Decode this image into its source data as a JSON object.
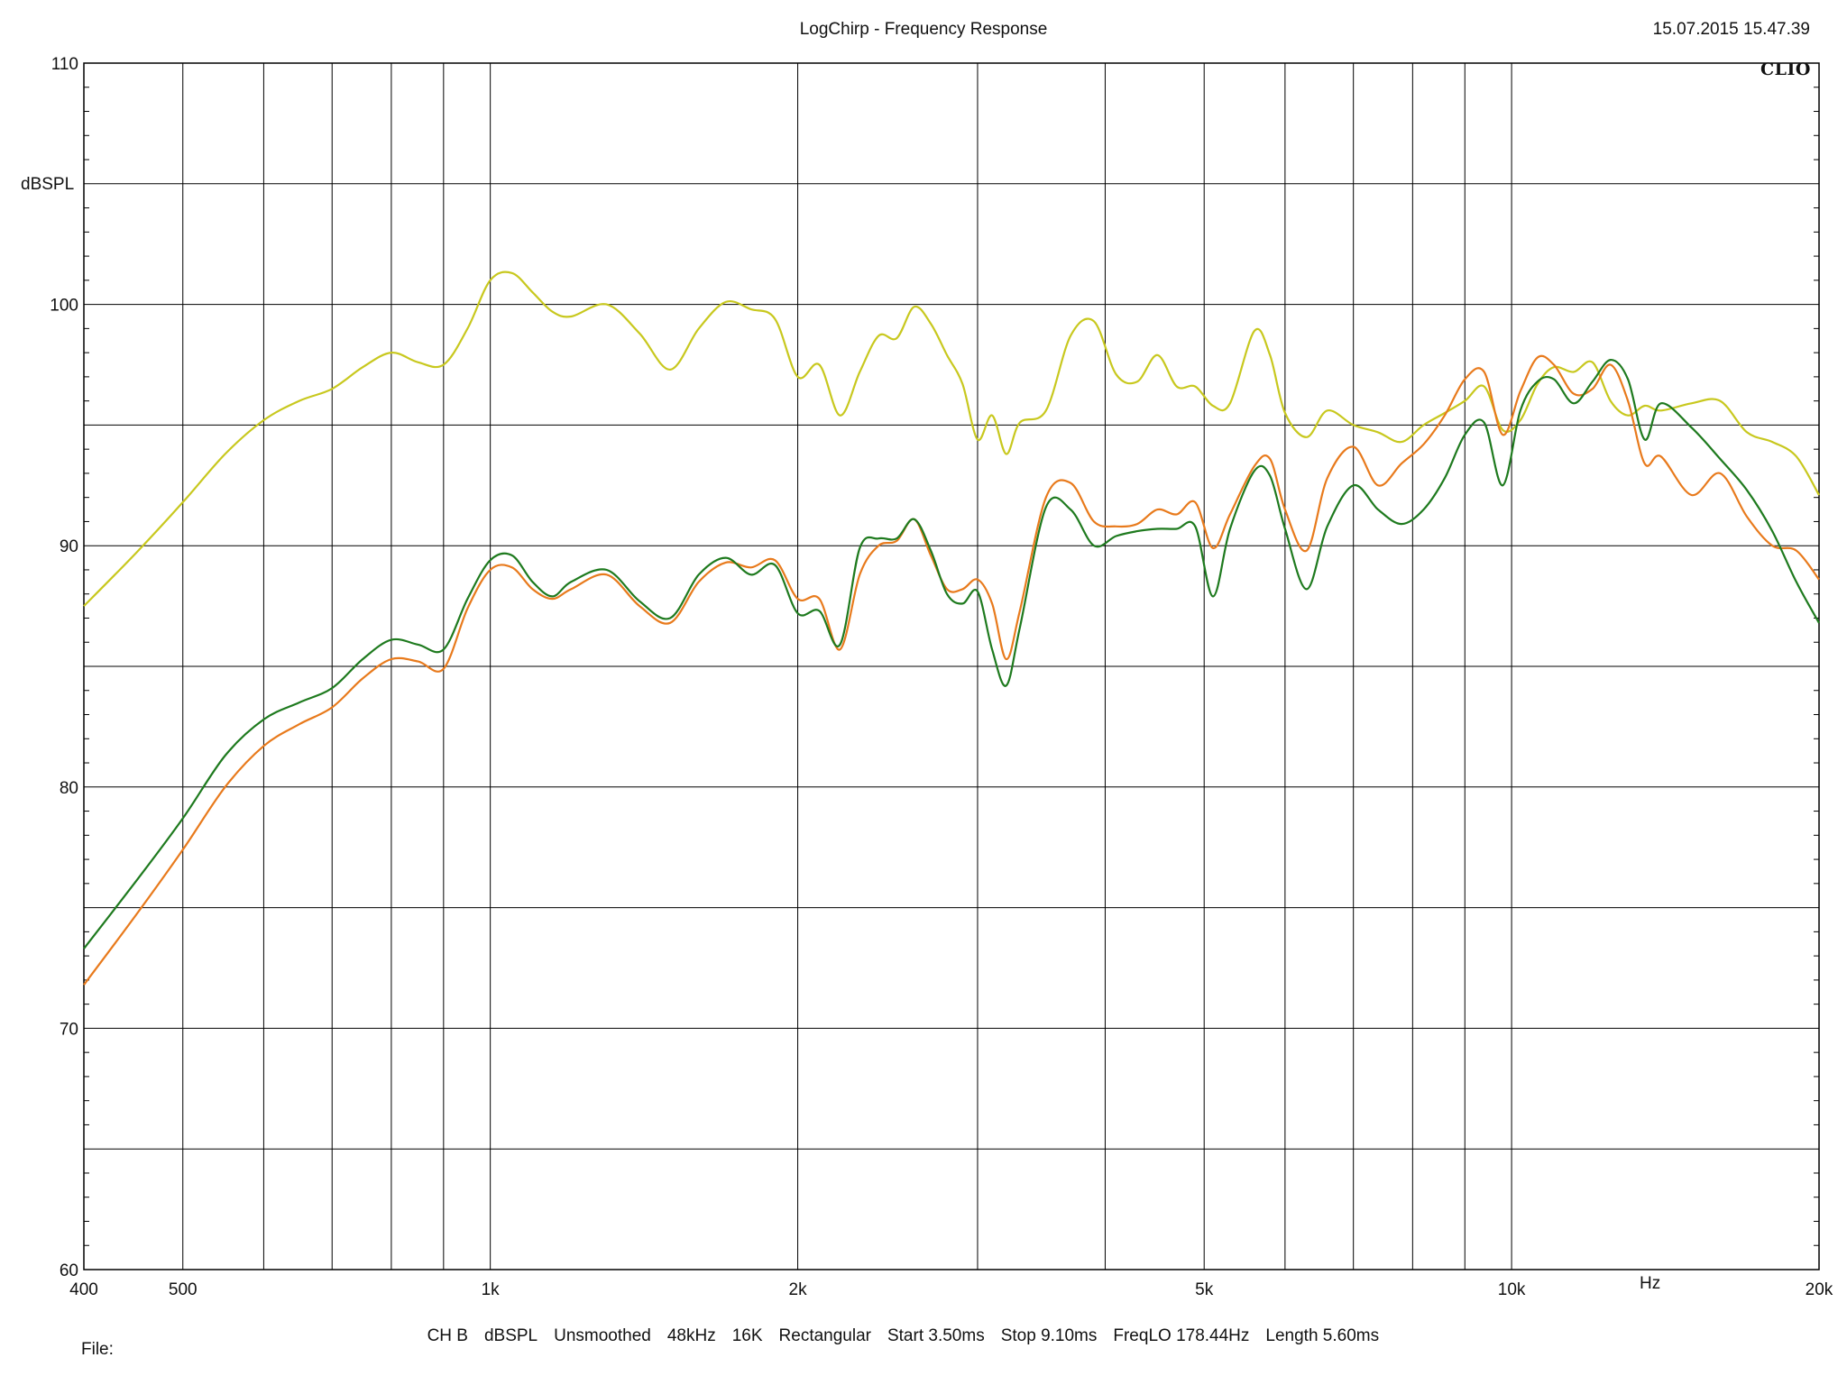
{
  "header": {
    "title": "LogChirp - Frequency Response",
    "timestamp": "15.07.2015 15.47.39",
    "logo": "CLIO"
  },
  "footer": {
    "items": [
      "CH B",
      "dBSPL",
      "Unsmoothed",
      "48kHz",
      "16K",
      "Rectangular",
      "Start 3.50ms",
      "Stop 9.10ms",
      "FreqLO 178.44Hz",
      "Length 5.60ms"
    ],
    "file_label": "File:"
  },
  "chart_data": {
    "type": "line",
    "title": "LogChirp - Frequency Response",
    "ylabel": "dBSPL",
    "xunit": "Hz",
    "xscale": "log",
    "xlim": [
      400,
      20000
    ],
    "ylim": [
      60,
      110
    ],
    "y_ticks": [
      60,
      70,
      80,
      90,
      100,
      110
    ],
    "x_ticks": [
      {
        "value": 400,
        "label": "400"
      },
      {
        "value": 500,
        "label": "500"
      },
      {
        "value": 1000,
        "label": "1k"
      },
      {
        "value": 2000,
        "label": "2k"
      },
      {
        "value": 5000,
        "label": "5k"
      },
      {
        "value": 10000,
        "label": "10k"
      },
      {
        "value": 20000,
        "label": "20k"
      }
    ],
    "grid": true,
    "series": [
      {
        "color": "#c8c81e",
        "x": [
          400,
          450,
          500,
          550,
          600,
          650,
          700,
          750,
          800,
          850,
          900,
          950,
          1000,
          1050,
          1100,
          1150,
          1200,
          1300,
          1400,
          1500,
          1600,
          1700,
          1800,
          1900,
          2000,
          2100,
          2200,
          2300,
          2400,
          2500,
          2600,
          2700,
          2800,
          2900,
          3000,
          3100,
          3200,
          3300,
          3500,
          3700,
          3900,
          4100,
          4300,
          4500,
          4700,
          4900,
          5100,
          5300,
          5600,
          5800,
          6000,
          6300,
          6600,
          7000,
          7400,
          7800,
          8200,
          8600,
          9000,
          9400,
          9800,
          10200,
          10600,
          11000,
          11500,
          12000,
          12500,
          13000,
          13500,
          14000,
          15000,
          16000,
          17000,
          18000,
          19000,
          20000
        ],
        "y": [
          87.5,
          89.7,
          91.8,
          93.8,
          95.2,
          96.0,
          96.5,
          97.4,
          98.0,
          97.6,
          97.5,
          99.0,
          101.0,
          101.3,
          100.5,
          99.7,
          99.5,
          100.0,
          98.8,
          97.3,
          99.0,
          100.1,
          99.8,
          99.4,
          97.0,
          97.5,
          95.4,
          97.2,
          98.7,
          98.6,
          99.9,
          99.2,
          97.9,
          96.7,
          94.4,
          95.4,
          93.8,
          95.1,
          95.6,
          98.7,
          99.3,
          97.1,
          96.8,
          97.9,
          96.6,
          96.6,
          95.8,
          95.9,
          98.9,
          97.9,
          95.5,
          94.5,
          95.6,
          95.0,
          94.7,
          94.3,
          95.0,
          95.5,
          96.0,
          96.6,
          94.8,
          95.2,
          96.7,
          97.4,
          97.2,
          97.6,
          96.0,
          95.4,
          95.8,
          95.6,
          95.9,
          96.0,
          94.7,
          94.3,
          93.7,
          92.1
        ]
      },
      {
        "color": "#e87a1c",
        "x": [
          400,
          450,
          500,
          550,
          600,
          650,
          700,
          750,
          800,
          850,
          900,
          950,
          1000,
          1050,
          1100,
          1150,
          1200,
          1300,
          1400,
          1500,
          1600,
          1700,
          1800,
          1900,
          2000,
          2100,
          2200,
          2300,
          2400,
          2500,
          2600,
          2700,
          2800,
          2900,
          3000,
          3100,
          3200,
          3300,
          3500,
          3700,
          3900,
          4100,
          4300,
          4500,
          4700,
          4900,
          5100,
          5300,
          5600,
          5800,
          6000,
          6300,
          6600,
          7000,
          7400,
          7800,
          8200,
          8600,
          9000,
          9400,
          9800,
          10200,
          10600,
          11000,
          11500,
          12000,
          12500,
          13000,
          13500,
          14000,
          15000,
          16000,
          17000,
          18000,
          19000,
          20000
        ],
        "y": [
          71.8,
          74.7,
          77.4,
          80.0,
          81.7,
          82.6,
          83.3,
          84.5,
          85.3,
          85.2,
          84.9,
          87.4,
          89.0,
          89.1,
          88.2,
          87.8,
          88.2,
          88.8,
          87.5,
          86.8,
          88.5,
          89.3,
          89.1,
          89.4,
          87.8,
          87.8,
          85.7,
          88.8,
          90.0,
          90.2,
          91.1,
          89.6,
          88.2,
          88.2,
          88.6,
          87.6,
          85.3,
          87.3,
          92.0,
          92.6,
          91.0,
          90.8,
          90.9,
          91.5,
          91.3,
          91.8,
          89.9,
          91.3,
          93.3,
          93.6,
          91.5,
          89.8,
          92.8,
          94.1,
          92.5,
          93.4,
          94.2,
          95.4,
          96.9,
          97.2,
          94.6,
          96.4,
          97.8,
          97.5,
          96.3,
          96.5,
          97.5,
          96.0,
          93.4,
          93.7,
          92.1,
          93.0,
          91.2,
          90.0,
          89.8,
          88.6
        ]
      },
      {
        "color": "#1e7a1e",
        "x": [
          400,
          450,
          500,
          550,
          600,
          650,
          700,
          750,
          800,
          850,
          900,
          950,
          1000,
          1050,
          1100,
          1150,
          1200,
          1300,
          1400,
          1500,
          1600,
          1700,
          1800,
          1900,
          2000,
          2100,
          2200,
          2300,
          2400,
          2500,
          2600,
          2700,
          2800,
          2900,
          3000,
          3100,
          3200,
          3300,
          3500,
          3700,
          3900,
          4100,
          4300,
          4500,
          4700,
          4900,
          5100,
          5300,
          5600,
          5800,
          6000,
          6300,
          6600,
          7000,
          7400,
          7800,
          8200,
          8600,
          9000,
          9400,
          9800,
          10200,
          10600,
          11000,
          11500,
          12000,
          12500,
          13000,
          13500,
          14000,
          15000,
          16000,
          17000,
          18000,
          19000,
          20000
        ],
        "y": [
          73.3,
          76.1,
          78.7,
          81.3,
          82.8,
          83.5,
          84.1,
          85.3,
          86.1,
          85.9,
          85.7,
          87.8,
          89.4,
          89.6,
          88.5,
          87.9,
          88.5,
          89.0,
          87.7,
          87.0,
          88.8,
          89.5,
          88.8,
          89.2,
          87.2,
          87.3,
          85.9,
          89.9,
          90.3,
          90.3,
          91.1,
          89.8,
          88.0,
          87.6,
          88.1,
          85.7,
          84.2,
          86.6,
          91.6,
          91.5,
          90.0,
          90.4,
          90.6,
          90.7,
          90.7,
          90.8,
          87.9,
          90.7,
          93.1,
          92.9,
          90.7,
          88.2,
          90.8,
          92.5,
          91.5,
          90.9,
          91.5,
          92.8,
          94.6,
          95.1,
          92.5,
          95.6,
          96.8,
          96.9,
          95.9,
          96.8,
          97.7,
          96.9,
          94.4,
          95.9,
          94.9,
          93.6,
          92.3,
          90.6,
          88.5,
          86.8
        ]
      }
    ]
  }
}
